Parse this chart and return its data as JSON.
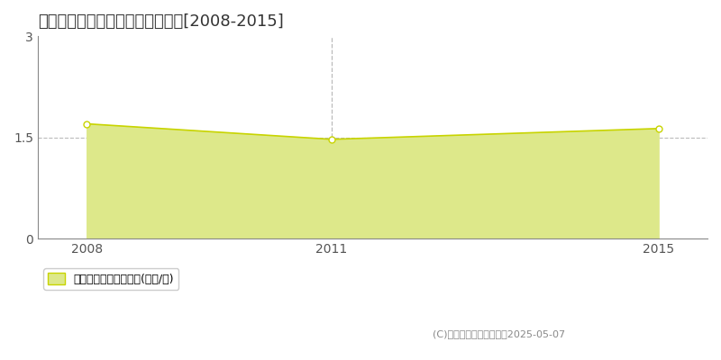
{
  "title": "朝倉郡筑前町弥永　土地価格推移[2008-2015]",
  "years": [
    2008,
    2011,
    2015
  ],
  "values": [
    1.7,
    1.47,
    1.63
  ],
  "xlim": [
    2007.4,
    2015.6
  ],
  "ylim": [
    0,
    3
  ],
  "yticks": [
    0,
    1.5,
    3
  ],
  "xticks": [
    2008,
    2011,
    2015
  ],
  "line_color": "#c8d400",
  "fill_color": "#dde88a",
  "fill_alpha": 1.0,
  "marker_color": "white",
  "marker_edge_color": "#c8d400",
  "vline_x": 2011,
  "vline_color": "#bbbbbb",
  "hgrid_color": "#bbbbbb",
  "background_color": "#ffffff",
  "legend_label": "土地価格　平均坪単価(万円/坪)",
  "copyright_text": "(C)土地価格ドットコム　2025-05-07",
  "title_fontsize": 13,
  "axis_fontsize": 10,
  "legend_fontsize": 9
}
